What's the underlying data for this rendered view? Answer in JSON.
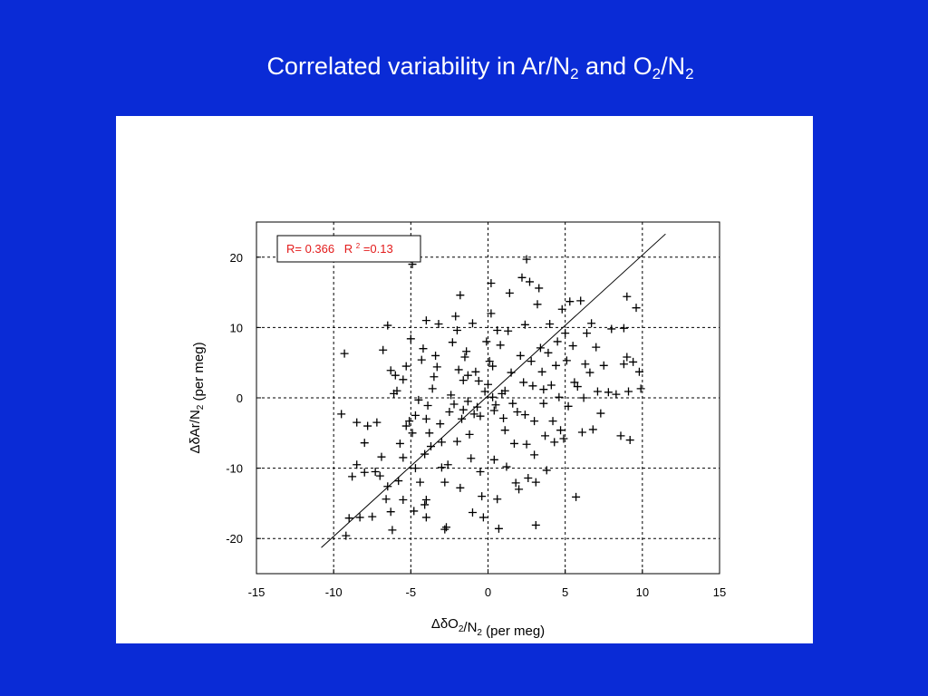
{
  "slide": {
    "title_parts": [
      {
        "text": "Correlated variability in Ar/N",
        "sub": false
      },
      {
        "text": "2",
        "sub": true
      },
      {
        "text": " and O",
        "sub": false
      },
      {
        "text": "2",
        "sub": true
      },
      {
        "text": "/N",
        "sub": false
      },
      {
        "text": "2",
        "sub": true
      }
    ]
  },
  "chart_data": {
    "type": "scatter",
    "xlabel": "ΔδO2/N2 (per meg)",
    "ylabel": "ΔδAr/N2 (per meg)",
    "xlim": [
      -15,
      15
    ],
    "ylim": [
      -25,
      25
    ],
    "xticks": [
      -15,
      -10,
      -5,
      0,
      5,
      10,
      15
    ],
    "yticks": [
      -20,
      -10,
      0,
      10,
      20
    ],
    "grid": true,
    "annotation": {
      "r_text": "R= 0.366",
      "r2_label": "R",
      "r2_sup": "2",
      "r2_value": "=0.13",
      "color": "#e31b1b",
      "placement": "top-left"
    },
    "fit_line": {
      "x": [
        -10.8,
        11.5
      ],
      "y": [
        -21.3,
        23.3
      ]
    },
    "marker_color": "#000000",
    "points": [
      [
        -9.3,
        6.3
      ],
      [
        -9.5,
        -2.3
      ],
      [
        -9.0,
        -17.1
      ],
      [
        -9.2,
        -19.6
      ],
      [
        -8.8,
        -11.2
      ],
      [
        -8.5,
        -9.5
      ],
      [
        -8.3,
        -17.0
      ],
      [
        -8.0,
        -6.4
      ],
      [
        -7.8,
        -4.0
      ],
      [
        -8.5,
        -3.5
      ],
      [
        -8.0,
        -10.6
      ],
      [
        -7.5,
        -16.9
      ],
      [
        -7.3,
        -10.5
      ],
      [
        -7.0,
        -11.1
      ],
      [
        -6.9,
        -8.4
      ],
      [
        -7.2,
        -3.5
      ],
      [
        -6.8,
        6.8
      ],
      [
        -6.6,
        -14.4
      ],
      [
        -6.5,
        -12.6
      ],
      [
        -6.3,
        -16.2
      ],
      [
        -6.2,
        -18.8
      ],
      [
        -6.5,
        10.3
      ],
      [
        -6.3,
        3.9
      ],
      [
        -6.0,
        3.2
      ],
      [
        -6.1,
        0.6
      ],
      [
        -5.9,
        1.0
      ],
      [
        -5.7,
        -6.5
      ],
      [
        -5.5,
        -8.5
      ],
      [
        -5.8,
        -11.8
      ],
      [
        -5.5,
        -14.5
      ],
      [
        -5.3,
        -4.0
      ],
      [
        -5.1,
        -3.3
      ],
      [
        -5.3,
        4.5
      ],
      [
        -5.5,
        2.6
      ],
      [
        -5.0,
        8.4
      ],
      [
        -4.8,
        -16.1
      ],
      [
        -4.7,
        -10.0
      ],
      [
        -4.9,
        -5.0
      ],
      [
        -4.7,
        -2.5
      ],
      [
        -4.5,
        -0.3
      ],
      [
        -4.9,
        19.0
      ],
      [
        -4.3,
        5.4
      ],
      [
        -4.2,
        7.0
      ],
      [
        -4.0,
        11.0
      ],
      [
        -4.0,
        -3.0
      ],
      [
        -4.1,
        -8.0
      ],
      [
        -4.0,
        -14.5
      ],
      [
        -4.1,
        -15.2
      ],
      [
        -4.0,
        -17.0
      ],
      [
        -3.9,
        -1.1
      ],
      [
        -3.8,
        -5.0
      ],
      [
        -3.6,
        1.3
      ],
      [
        -3.5,
        3.0
      ],
      [
        -3.4,
        6.0
      ],
      [
        -3.2,
        10.5
      ],
      [
        -3.3,
        4.4
      ],
      [
        -3.1,
        -3.7
      ],
      [
        -3.0,
        -6.3
      ],
      [
        -3.0,
        -9.9
      ],
      [
        -2.8,
        -12.0
      ],
      [
        -2.7,
        -18.4
      ],
      [
        -2.8,
        -18.7
      ],
      [
        -2.6,
        -9.5
      ],
      [
        -2.5,
        -2.0
      ],
      [
        -2.4,
        0.4
      ],
      [
        -2.3,
        7.9
      ],
      [
        -2.1,
        11.6
      ],
      [
        -2.0,
        9.6
      ],
      [
        -1.9,
        4.0
      ],
      [
        -2.0,
        -6.2
      ],
      [
        -1.8,
        -12.8
      ],
      [
        -1.7,
        -3.0
      ],
      [
        -1.6,
        2.5
      ],
      [
        -1.8,
        14.6
      ],
      [
        -1.5,
        5.8
      ],
      [
        -1.4,
        6.6
      ],
      [
        -1.3,
        -0.5
      ],
      [
        -1.2,
        -5.2
      ],
      [
        -1.1,
        -8.6
      ],
      [
        -1.0,
        -16.3
      ],
      [
        -1.0,
        10.6
      ],
      [
        -0.8,
        3.7
      ],
      [
        -0.7,
        -1.3
      ],
      [
        -0.5,
        -2.6
      ],
      [
        -0.5,
        -10.5
      ],
      [
        -0.4,
        -14.0
      ],
      [
        -0.3,
        -17.0
      ],
      [
        -0.2,
        0.9
      ],
      [
        -0.1,
        8.0
      ],
      [
        0.0,
        1.9
      ],
      [
        0.2,
        16.3
      ],
      [
        0.2,
        12.0
      ],
      [
        0.3,
        4.5
      ],
      [
        0.4,
        -1.8
      ],
      [
        0.4,
        -8.8
      ],
      [
        0.6,
        -14.4
      ],
      [
        0.7,
        -18.6
      ],
      [
        0.6,
        9.6
      ],
      [
        0.8,
        7.5
      ],
      [
        0.9,
        0.6
      ],
      [
        1.0,
        -2.9
      ],
      [
        1.1,
        -4.6
      ],
      [
        1.2,
        -9.8
      ],
      [
        1.3,
        9.5
      ],
      [
        1.4,
        14.9
      ],
      [
        1.5,
        3.6
      ],
      [
        1.6,
        -0.8
      ],
      [
        1.7,
        -6.5
      ],
      [
        1.8,
        -12.1
      ],
      [
        2.0,
        -13.0
      ],
      [
        2.1,
        6.0
      ],
      [
        2.2,
        17.1
      ],
      [
        2.3,
        2.2
      ],
      [
        2.4,
        -2.4
      ],
      [
        2.5,
        -6.6
      ],
      [
        2.6,
        -11.4
      ],
      [
        2.5,
        19.7
      ],
      [
        2.7,
        16.5
      ],
      [
        2.8,
        5.2
      ],
      [
        2.9,
        1.7
      ],
      [
        3.0,
        -3.3
      ],
      [
        3.0,
        -8.1
      ],
      [
        3.1,
        -12.0
      ],
      [
        3.1,
        -18.1
      ],
      [
        3.3,
        15.6
      ],
      [
        3.2,
        13.3
      ],
      [
        3.4,
        7.1
      ],
      [
        3.5,
        3.7
      ],
      [
        3.6,
        -0.8
      ],
      [
        3.7,
        -5.4
      ],
      [
        3.8,
        -10.3
      ],
      [
        3.9,
        6.4
      ],
      [
        4.0,
        10.5
      ],
      [
        4.1,
        1.8
      ],
      [
        4.2,
        -3.3
      ],
      [
        4.3,
        -6.3
      ],
      [
        4.4,
        4.6
      ],
      [
        4.5,
        8.0
      ],
      [
        4.6,
        0.1
      ],
      [
        4.7,
        -4.6
      ],
      [
        4.8,
        12.6
      ],
      [
        5.0,
        9.2
      ],
      [
        5.1,
        5.3
      ],
      [
        5.2,
        -1.2
      ],
      [
        5.3,
        13.7
      ],
      [
        5.5,
        7.4
      ],
      [
        5.6,
        2.2
      ],
      [
        5.7,
        -14.1
      ],
      [
        5.8,
        1.6
      ],
      [
        6.0,
        13.8
      ],
      [
        6.1,
        -4.9
      ],
      [
        6.2,
        0.0
      ],
      [
        6.3,
        4.8
      ],
      [
        6.4,
        9.2
      ],
      [
        6.6,
        3.6
      ],
      [
        6.7,
        10.6
      ],
      [
        6.8,
        -4.5
      ],
      [
        7.0,
        7.2
      ],
      [
        7.1,
        0.9
      ],
      [
        7.3,
        -2.2
      ],
      [
        7.5,
        4.6
      ],
      [
        7.8,
        0.8
      ],
      [
        8.0,
        9.8
      ],
      [
        8.3,
        0.5
      ],
      [
        8.6,
        -5.4
      ],
      [
        8.8,
        9.9
      ],
      [
        9.0,
        14.4
      ],
      [
        9.2,
        -6.0
      ],
      [
        9.1,
        0.9
      ],
      [
        9.4,
        5.1
      ],
      [
        9.6,
        12.8
      ],
      [
        9.8,
        3.7
      ],
      [
        9.9,
        1.3
      ],
      [
        9.0,
        5.8
      ],
      [
        8.8,
        4.8
      ],
      [
        -1.6,
        -1.7
      ],
      [
        -0.9,
        -2.3
      ],
      [
        -0.6,
        2.4
      ],
      [
        0.3,
        0.1
      ],
      [
        0.5,
        -1.0
      ],
      [
        1.1,
        1.0
      ],
      [
        -2.2,
        -0.9
      ],
      [
        1.9,
        -2.0
      ],
      [
        -1.3,
        3.2
      ],
      [
        0.1,
        5.2
      ],
      [
        -3.7,
        -6.9
      ],
      [
        3.6,
        1.2
      ],
      [
        -4.4,
        -12.0
      ],
      [
        4.9,
        -5.8
      ],
      [
        2.4,
        10.4
      ]
    ]
  }
}
